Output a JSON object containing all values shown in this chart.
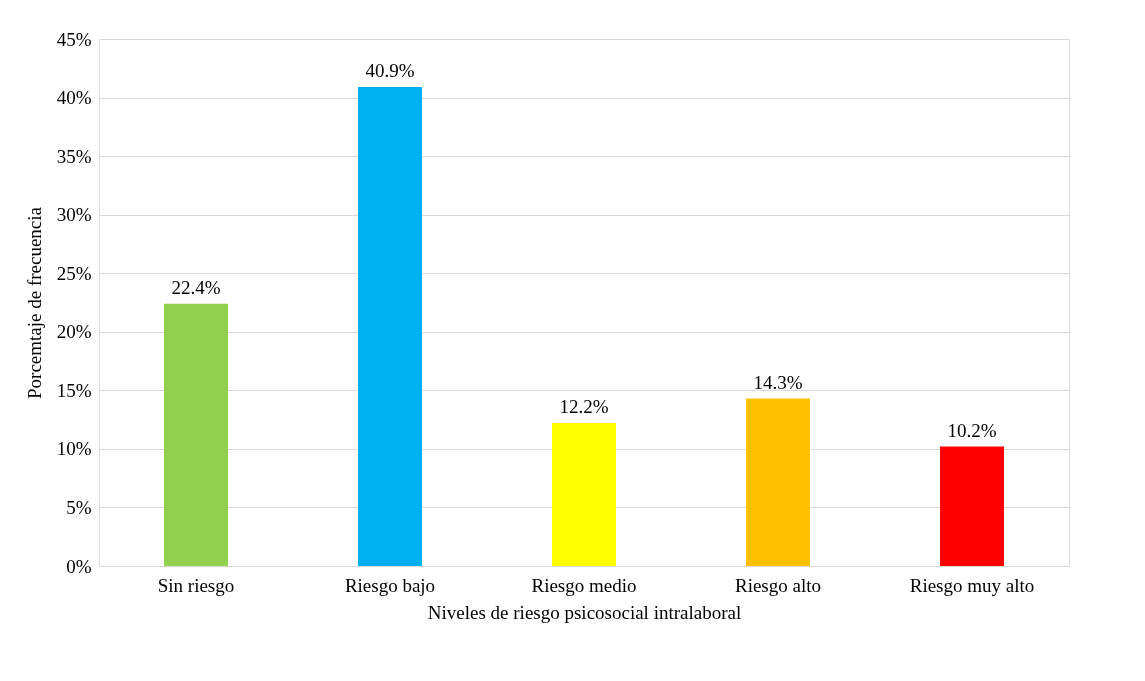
{
  "chart_data": {
    "type": "bar",
    "xlabel": "Niveles de riesgo psicosocial intralaboral",
    "ylabel": "Porcemtaje de frecuencia",
    "categories": [
      "Sin riesgo",
      "Riesgo bajo",
      "Riesgo medio",
      "Riesgo alto",
      "Riesgo muy alto"
    ],
    "values": [
      22.4,
      40.9,
      12.2,
      14.3,
      10.2
    ],
    "colors": [
      "#92d050",
      "#00b0f0",
      "#ffff00",
      "#ffc000",
      "#ff0000"
    ],
    "value_labels": [
      "22.4%",
      "40.9%",
      "12.2%",
      "14.3%",
      "10.2%"
    ],
    "ylim": [
      0,
      45
    ],
    "yticks": [
      {
        "value": 0,
        "label": "0%"
      },
      {
        "value": 5,
        "label": "5%"
      },
      {
        "value": 10,
        "label": "10%"
      },
      {
        "value": 15,
        "label": "15%"
      },
      {
        "value": 20,
        "label": "20%"
      },
      {
        "value": 25,
        "label": "25%"
      },
      {
        "value": 30,
        "label": "30%"
      },
      {
        "value": 35,
        "label": "35%"
      },
      {
        "value": 40,
        "label": "40%"
      },
      {
        "value": 45,
        "label": "45%"
      }
    ],
    "grid": "y"
  }
}
